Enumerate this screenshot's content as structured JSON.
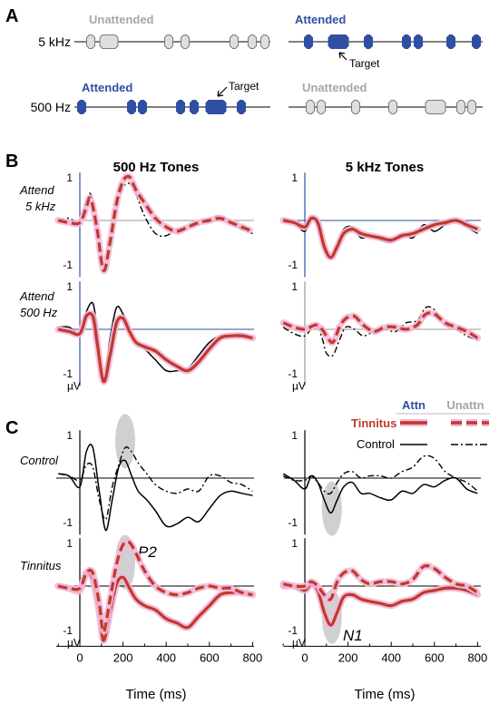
{
  "panel_a": {
    "letter": "A",
    "rows": [
      {
        "label": "5 kHz",
        "left_state": "Unattended",
        "right_state": "Attended"
      },
      {
        "label": "500 Hz",
        "left_state": "Attended",
        "right_state": "Unattended"
      }
    ],
    "target_label": "Target",
    "colors": {
      "attended": "#2e4fa3",
      "unattended": "#a6a6a6",
      "unattended_fill": "#dedede"
    }
  },
  "panel_b": {
    "letter": "B",
    "column_titles": [
      "500 Hz Tones",
      "5 kHz Tones"
    ],
    "row_labels": [
      [
        "Attend",
        "5 kHz"
      ],
      [
        "Attend",
        "500 Hz"
      ]
    ]
  },
  "panel_c": {
    "letter": "C",
    "row_labels": [
      "Control",
      "Tinnitus"
    ],
    "annotations": [
      "P2",
      "N1"
    ]
  },
  "legend": {
    "col_attn": "Attn",
    "col_unattn": "Unattn",
    "rows": [
      "Tinnitus",
      "Control"
    ],
    "colors": {
      "attn_header": "#2e4fa3",
      "unattn_header": "#a6a6a6",
      "tinnitus": "#c0392b",
      "tinnitus_glow": "#f2b8d8",
      "control": "#000000"
    }
  },
  "axes": {
    "y_ticks": [
      "1",
      "-1"
    ],
    "unit": "µV",
    "x_ticks": [
      "0",
      "200",
      "400",
      "600",
      "800"
    ],
    "x_label": "Time (ms)",
    "x_range_ms": [
      -100,
      800
    ],
    "y_range_uv": [
      -1.3,
      1.1
    ]
  },
  "chart_data": [
    {
      "type": "line",
      "panel": "B-500Hz-attend5kHz",
      "series": [
        {
          "style": "tinnitus-unattended",
          "x": [
            -100,
            -50,
            0,
            30,
            50,
            80,
            110,
            140,
            170,
            200,
            230,
            260,
            300,
            350,
            400,
            450,
            500,
            550,
            600,
            650,
            700,
            750,
            800
          ],
          "y": [
            0,
            -0.05,
            -0.05,
            0.3,
            0.5,
            -0.2,
            -1.15,
            -0.5,
            0.4,
            0.9,
            1.0,
            0.7,
            0.4,
            0.05,
            -0.15,
            -0.25,
            -0.15,
            -0.05,
            0.0,
            0.05,
            -0.05,
            -0.15,
            -0.25
          ]
        },
        {
          "style": "control-unattended",
          "x": [
            -100,
            -50,
            0,
            30,
            50,
            80,
            110,
            140,
            170,
            200,
            230,
            260,
            300,
            350,
            400,
            450,
            500,
            550,
            600,
            650,
            700,
            750,
            800
          ],
          "y": [
            0,
            0.05,
            -0.05,
            0.4,
            0.6,
            -0.2,
            -1.05,
            -0.4,
            0.3,
            0.75,
            0.85,
            0.6,
            0.1,
            -0.3,
            -0.35,
            -0.2,
            -0.15,
            -0.1,
            0.05,
            0.1,
            -0.05,
            -0.2,
            -0.3
          ]
        }
      ]
    },
    {
      "type": "line",
      "panel": "B-5kHz-attend5kHz",
      "series": [
        {
          "style": "tinnitus-attended",
          "x": [
            -100,
            -50,
            0,
            30,
            60,
            90,
            120,
            150,
            180,
            220,
            260,
            300,
            350,
            400,
            450,
            500,
            550,
            600,
            650,
            700,
            750,
            800
          ],
          "y": [
            0,
            -0.05,
            -0.15,
            0.05,
            -0.05,
            -0.6,
            -0.85,
            -0.6,
            -0.3,
            -0.2,
            -0.3,
            -0.35,
            -0.4,
            -0.45,
            -0.35,
            -0.3,
            -0.2,
            -0.1,
            -0.05,
            0.0,
            -0.1,
            -0.2
          ]
        },
        {
          "style": "control-attended",
          "x": [
            -100,
            -50,
            0,
            30,
            60,
            90,
            120,
            150,
            180,
            220,
            260,
            300,
            350,
            400,
            450,
            500,
            550,
            600,
            650,
            700,
            750,
            800
          ],
          "y": [
            0.05,
            -0.05,
            -0.25,
            0.1,
            -0.1,
            -0.55,
            -0.85,
            -0.55,
            -0.2,
            -0.15,
            -0.4,
            -0.35,
            -0.45,
            -0.5,
            -0.3,
            -0.4,
            -0.1,
            -0.25,
            -0.1,
            0.0,
            -0.15,
            -0.3
          ]
        }
      ]
    },
    {
      "type": "line",
      "panel": "B-500Hz-attend500Hz",
      "series": [
        {
          "style": "tinnitus-attended",
          "x": [
            -100,
            -50,
            0,
            30,
            60,
            80,
            110,
            140,
            170,
            200,
            230,
            260,
            300,
            350,
            400,
            450,
            500,
            550,
            600,
            650,
            700,
            750,
            800
          ],
          "y": [
            0,
            -0.05,
            -0.1,
            0.3,
            0.3,
            -0.3,
            -1.2,
            -0.6,
            0.15,
            0.25,
            -0.05,
            -0.3,
            -0.4,
            -0.5,
            -0.7,
            -0.85,
            -0.95,
            -0.75,
            -0.45,
            -0.2,
            -0.15,
            -0.15,
            -0.2
          ]
        },
        {
          "style": "control-attended",
          "x": [
            -100,
            -50,
            0,
            30,
            60,
            80,
            110,
            140,
            170,
            200,
            230,
            260,
            300,
            350,
            400,
            450,
            500,
            550,
            600,
            650,
            700,
            750,
            800
          ],
          "y": [
            0.05,
            0.05,
            -0.1,
            0.4,
            0.6,
            0.0,
            -1.15,
            -0.2,
            0.5,
            0.35,
            0.0,
            -0.3,
            -0.45,
            -0.7,
            -0.95,
            -0.95,
            -0.9,
            -0.6,
            -0.3,
            -0.15,
            -0.15,
            -0.1,
            -0.2
          ]
        }
      ]
    },
    {
      "type": "line",
      "panel": "B-5kHz-attend500Hz",
      "series": [
        {
          "style": "tinnitus-unattended",
          "x": [
            -100,
            -50,
            0,
            50,
            80,
            100,
            130,
            160,
            190,
            230,
            270,
            320,
            370,
            420,
            470,
            520,
            560,
            600,
            650,
            700,
            750,
            800
          ],
          "y": [
            0.15,
            0.05,
            0.0,
            0.1,
            0.0,
            -0.15,
            -0.3,
            0.05,
            0.25,
            0.3,
            0.1,
            -0.05,
            0.05,
            0.05,
            0.0,
            0.1,
            0.35,
            0.35,
            0.15,
            0.05,
            -0.05,
            -0.2
          ]
        },
        {
          "style": "control-unattended",
          "x": [
            -100,
            -50,
            0,
            50,
            80,
            100,
            130,
            160,
            190,
            230,
            270,
            320,
            370,
            420,
            470,
            520,
            560,
            600,
            650,
            700,
            750,
            800
          ],
          "y": [
            0.05,
            -0.1,
            -0.15,
            0.1,
            -0.2,
            -0.55,
            -0.6,
            -0.25,
            0.05,
            0.0,
            -0.15,
            -0.05,
            0.0,
            -0.05,
            0.15,
            0.2,
            0.5,
            0.45,
            0.1,
            0.0,
            -0.15,
            -0.25
          ]
        }
      ]
    },
    {
      "type": "line",
      "panel": "C-500Hz-Control",
      "series": [
        {
          "style": "control-attended",
          "x": [
            -100,
            -50,
            0,
            30,
            60,
            90,
            120,
            150,
            180,
            210,
            240,
            270,
            310,
            350,
            400,
            450,
            500,
            550,
            600,
            650,
            700,
            750,
            800
          ],
          "y": [
            0.1,
            0.05,
            -0.2,
            0.6,
            0.7,
            -0.3,
            -1.2,
            -0.5,
            0.25,
            0.4,
            0.05,
            -0.3,
            -0.5,
            -0.75,
            -1.1,
            -1.05,
            -0.9,
            -1.0,
            -0.7,
            -0.4,
            -0.3,
            -0.35,
            -0.4
          ]
        },
        {
          "style": "control-unattended",
          "x": [
            -100,
            -50,
            0,
            30,
            60,
            90,
            120,
            150,
            180,
            210,
            240,
            270,
            310,
            350,
            400,
            450,
            500,
            550,
            600,
            650,
            700,
            750,
            800
          ],
          "y": [
            0.1,
            0.05,
            -0.05,
            0.3,
            0.25,
            -0.5,
            -0.95,
            -0.2,
            0.3,
            0.7,
            0.6,
            0.35,
            0.1,
            -0.15,
            -0.3,
            -0.35,
            -0.25,
            -0.3,
            0.05,
            0.05,
            -0.1,
            -0.15,
            -0.3
          ]
        }
      ]
    },
    {
      "type": "line",
      "panel": "C-5kHz-Control",
      "series": [
        {
          "style": "control-attended",
          "x": [
            -100,
            -50,
            0,
            30,
            60,
            90,
            120,
            150,
            180,
            220,
            260,
            300,
            350,
            400,
            450,
            500,
            550,
            600,
            650,
            700,
            750,
            800
          ],
          "y": [
            0.1,
            -0.05,
            -0.25,
            0.05,
            -0.1,
            -0.5,
            -0.8,
            -0.5,
            -0.2,
            -0.1,
            -0.35,
            -0.35,
            -0.45,
            -0.5,
            -0.3,
            -0.35,
            -0.15,
            -0.2,
            -0.05,
            0.0,
            -0.25,
            -0.35
          ]
        },
        {
          "style": "control-unattended",
          "x": [
            -100,
            -50,
            0,
            30,
            60,
            90,
            120,
            150,
            180,
            220,
            260,
            300,
            350,
            400,
            450,
            500,
            550,
            600,
            650,
            700,
            750,
            800
          ],
          "y": [
            0.05,
            -0.05,
            -0.05,
            0.05,
            -0.1,
            -0.3,
            -0.35,
            -0.1,
            0.1,
            0.15,
            0.0,
            0.05,
            0.05,
            0.0,
            0.15,
            0.25,
            0.5,
            0.45,
            0.15,
            0.0,
            -0.1,
            -0.3
          ]
        }
      ]
    },
    {
      "type": "line",
      "panel": "C-500Hz-Tinnitus",
      "series": [
        {
          "style": "tinnitus-attended",
          "x": [
            -100,
            -50,
            0,
            30,
            60,
            90,
            110,
            140,
            170,
            200,
            230,
            260,
            300,
            350,
            400,
            450,
            500,
            550,
            600,
            650,
            700,
            750,
            800
          ],
          "y": [
            0,
            -0.05,
            -0.1,
            0.3,
            0.15,
            -0.6,
            -1.25,
            -0.6,
            0.05,
            0.2,
            -0.05,
            -0.3,
            -0.45,
            -0.55,
            -0.75,
            -0.85,
            -0.95,
            -0.7,
            -0.45,
            -0.2,
            -0.15,
            -0.15,
            -0.2
          ]
        },
        {
          "style": "tinnitus-unattended",
          "x": [
            -100,
            -50,
            0,
            30,
            60,
            90,
            110,
            140,
            170,
            200,
            230,
            260,
            300,
            350,
            400,
            450,
            500,
            550,
            600,
            650,
            700,
            750,
            800
          ],
          "y": [
            0,
            -0.05,
            -0.05,
            0.3,
            0.3,
            -0.4,
            -1.05,
            -0.3,
            0.5,
            0.95,
            1.0,
            0.75,
            0.35,
            0.0,
            -0.15,
            -0.2,
            -0.15,
            -0.05,
            0.0,
            -0.05,
            -0.05,
            -0.15,
            -0.2
          ]
        }
      ]
    },
    {
      "type": "line",
      "panel": "C-5kHz-Tinnitus",
      "series": [
        {
          "style": "tinnitus-attended",
          "x": [
            -100,
            -50,
            0,
            30,
            60,
            90,
            120,
            150,
            180,
            220,
            260,
            300,
            350,
            400,
            450,
            500,
            550,
            600,
            650,
            700,
            750,
            800
          ],
          "y": [
            0,
            0.0,
            -0.1,
            0.05,
            -0.1,
            -0.6,
            -0.9,
            -0.6,
            -0.25,
            -0.2,
            -0.3,
            -0.35,
            -0.4,
            -0.45,
            -0.35,
            -0.3,
            -0.15,
            -0.1,
            -0.05,
            -0.05,
            -0.1,
            -0.2
          ]
        },
        {
          "style": "tinnitus-unattended",
          "x": [
            -100,
            -50,
            0,
            30,
            60,
            90,
            120,
            150,
            180,
            220,
            260,
            300,
            350,
            400,
            450,
            500,
            550,
            600,
            650,
            700,
            750,
            800
          ],
          "y": [
            0.05,
            0.0,
            0.0,
            0.1,
            0.0,
            -0.2,
            -0.3,
            0.1,
            0.3,
            0.35,
            0.15,
            0.05,
            0.1,
            0.1,
            0.05,
            0.15,
            0.45,
            0.4,
            0.2,
            0.05,
            0.0,
            -0.15
          ]
        }
      ]
    }
  ]
}
